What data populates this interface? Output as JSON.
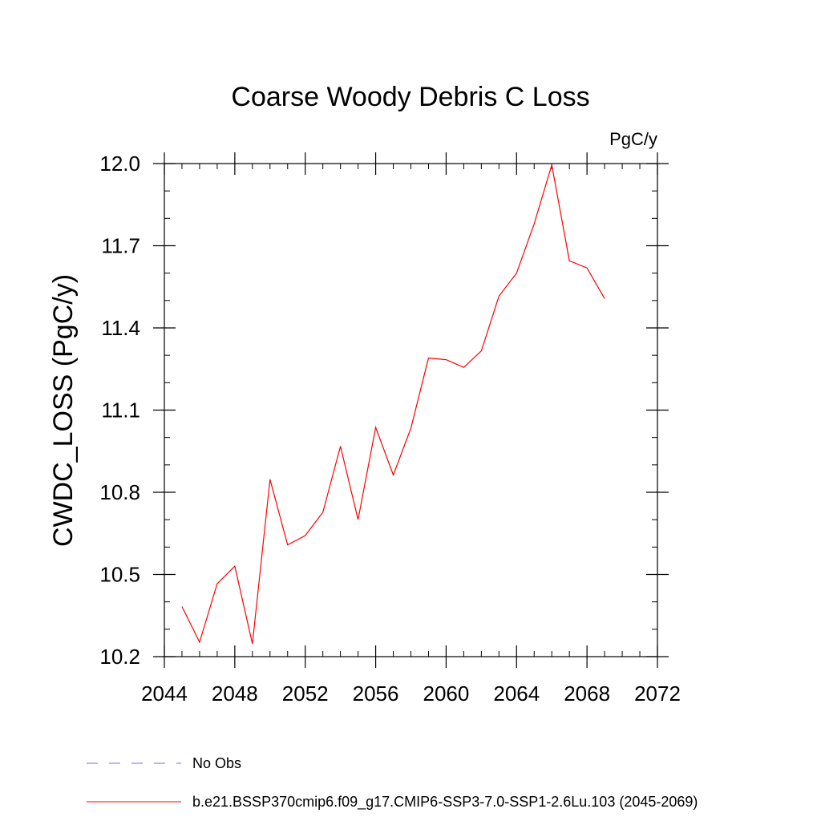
{
  "chart_data": {
    "type": "line",
    "title": "Coarse Woody Debris C Loss",
    "units_label": "PgC/y",
    "xlabel": "",
    "ylabel": "CWDC_LOSS  (PgC/y)",
    "xlim": [
      2044,
      2072
    ],
    "ylim": [
      10.2,
      12.0
    ],
    "x_ticks": [
      2044,
      2048,
      2052,
      2056,
      2060,
      2064,
      2068,
      2072
    ],
    "x_tick_labels": [
      "2044",
      "2048",
      "2052",
      "2056",
      "2060",
      "2064",
      "2068",
      "2072"
    ],
    "y_ticks": [
      10.2,
      10.5,
      10.8,
      11.1,
      11.4,
      11.7,
      12.0
    ],
    "y_tick_labels": [
      "10.2",
      "10.5",
      "10.8",
      "11.1",
      "11.4",
      "11.7",
      "12.0"
    ],
    "grid": false,
    "legend_position": "bottom",
    "series": [
      {
        "name": "b.e21.BSSP370cmip6.f09_g17.CMIP6-SSP3-7.0-SSP1-2.6Lu.103 (2045-2069)",
        "color": "#ff0000",
        "style": "solid",
        "x": [
          2045,
          2046,
          2047,
          2048,
          2049,
          2050,
          2051,
          2052,
          2053,
          2054,
          2055,
          2056,
          2057,
          2058,
          2059,
          2060,
          2061,
          2062,
          2063,
          2064,
          2065,
          2066,
          2067,
          2068,
          2069
        ],
        "y": [
          10.383,
          10.253,
          10.466,
          10.53,
          10.247,
          10.847,
          10.608,
          10.642,
          10.727,
          10.968,
          10.7,
          11.037,
          10.863,
          11.034,
          11.29,
          11.284,
          11.256,
          11.316,
          11.516,
          11.6,
          11.78,
          11.995,
          11.645,
          11.619,
          11.507
        ]
      }
    ],
    "legend": [
      {
        "label": "No Obs",
        "color": "#7b68ee",
        "style": "dashed"
      },
      {
        "label": "b.e21.BSSP370cmip6.f09_g17.CMIP6-SSP3-7.0-SSP1-2.6Lu.103 (2045-2069)",
        "color": "#ff0000",
        "style": "solid"
      }
    ]
  }
}
